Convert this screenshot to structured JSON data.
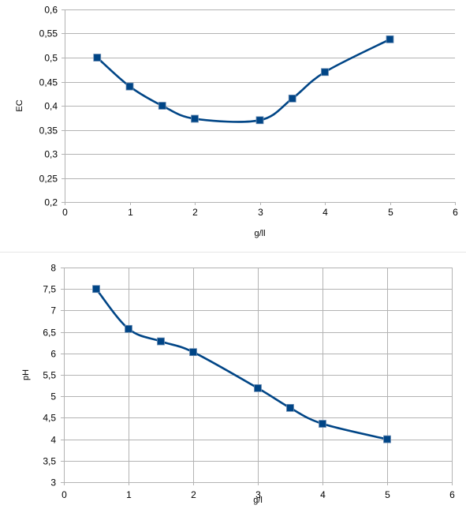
{
  "chart_data": [
    {
      "type": "line",
      "title": "",
      "xlabel": "g/ll",
      "ylabel": "EC",
      "xlim": [
        0,
        6
      ],
      "ylim": [
        0.2,
        0.6
      ],
      "x_ticks": [
        0,
        1,
        2,
        3,
        4,
        5,
        6
      ],
      "y_ticks": [
        0.2,
        0.25,
        0.3,
        0.35,
        0.4,
        0.45,
        0.5,
        0.55,
        0.6
      ],
      "x_tick_labels": [
        "0",
        "1",
        "2",
        "3",
        "4",
        "5",
        "6"
      ],
      "y_tick_labels": [
        "0,2",
        "0,25",
        "0,3",
        "0,35",
        "0,4",
        "0,45",
        "0,5",
        "0,55",
        "0,6"
      ],
      "grid": "horizontal",
      "smooth": true,
      "series": [
        {
          "color": "#004586",
          "marker": "square",
          "x": [
            0.5,
            1,
            1.5,
            2,
            3,
            3.5,
            4,
            5
          ],
          "y": [
            0.5,
            0.44,
            0.4,
            0.373,
            0.37,
            0.415,
            0.47,
            0.538
          ]
        }
      ]
    },
    {
      "type": "line",
      "title": "",
      "xlabel": "g/l",
      "ylabel": "pH",
      "xlim": [
        0,
        6
      ],
      "ylim": [
        3,
        8
      ],
      "x_ticks": [
        0,
        1,
        2,
        3,
        4,
        5,
        6
      ],
      "y_ticks": [
        3,
        3.5,
        4,
        4.5,
        5,
        5.5,
        6,
        6.5,
        7,
        7.5,
        8
      ],
      "x_tick_labels": [
        "0",
        "1",
        "2",
        "3",
        "4",
        "5",
        "6"
      ],
      "y_tick_labels": [
        "3",
        "3,5",
        "4",
        "4,5",
        "5",
        "5,5",
        "6",
        "6,5",
        "7",
        "7,5",
        "8"
      ],
      "grid": "both",
      "smooth": true,
      "series": [
        {
          "color": "#004586",
          "marker": "square",
          "x": [
            0.5,
            1,
            1.5,
            2,
            3,
            3.5,
            4,
            5
          ],
          "y": [
            7.5,
            6.57,
            6.28,
            6.03,
            5.19,
            4.73,
            4.36,
            4.0
          ]
        }
      ]
    }
  ]
}
